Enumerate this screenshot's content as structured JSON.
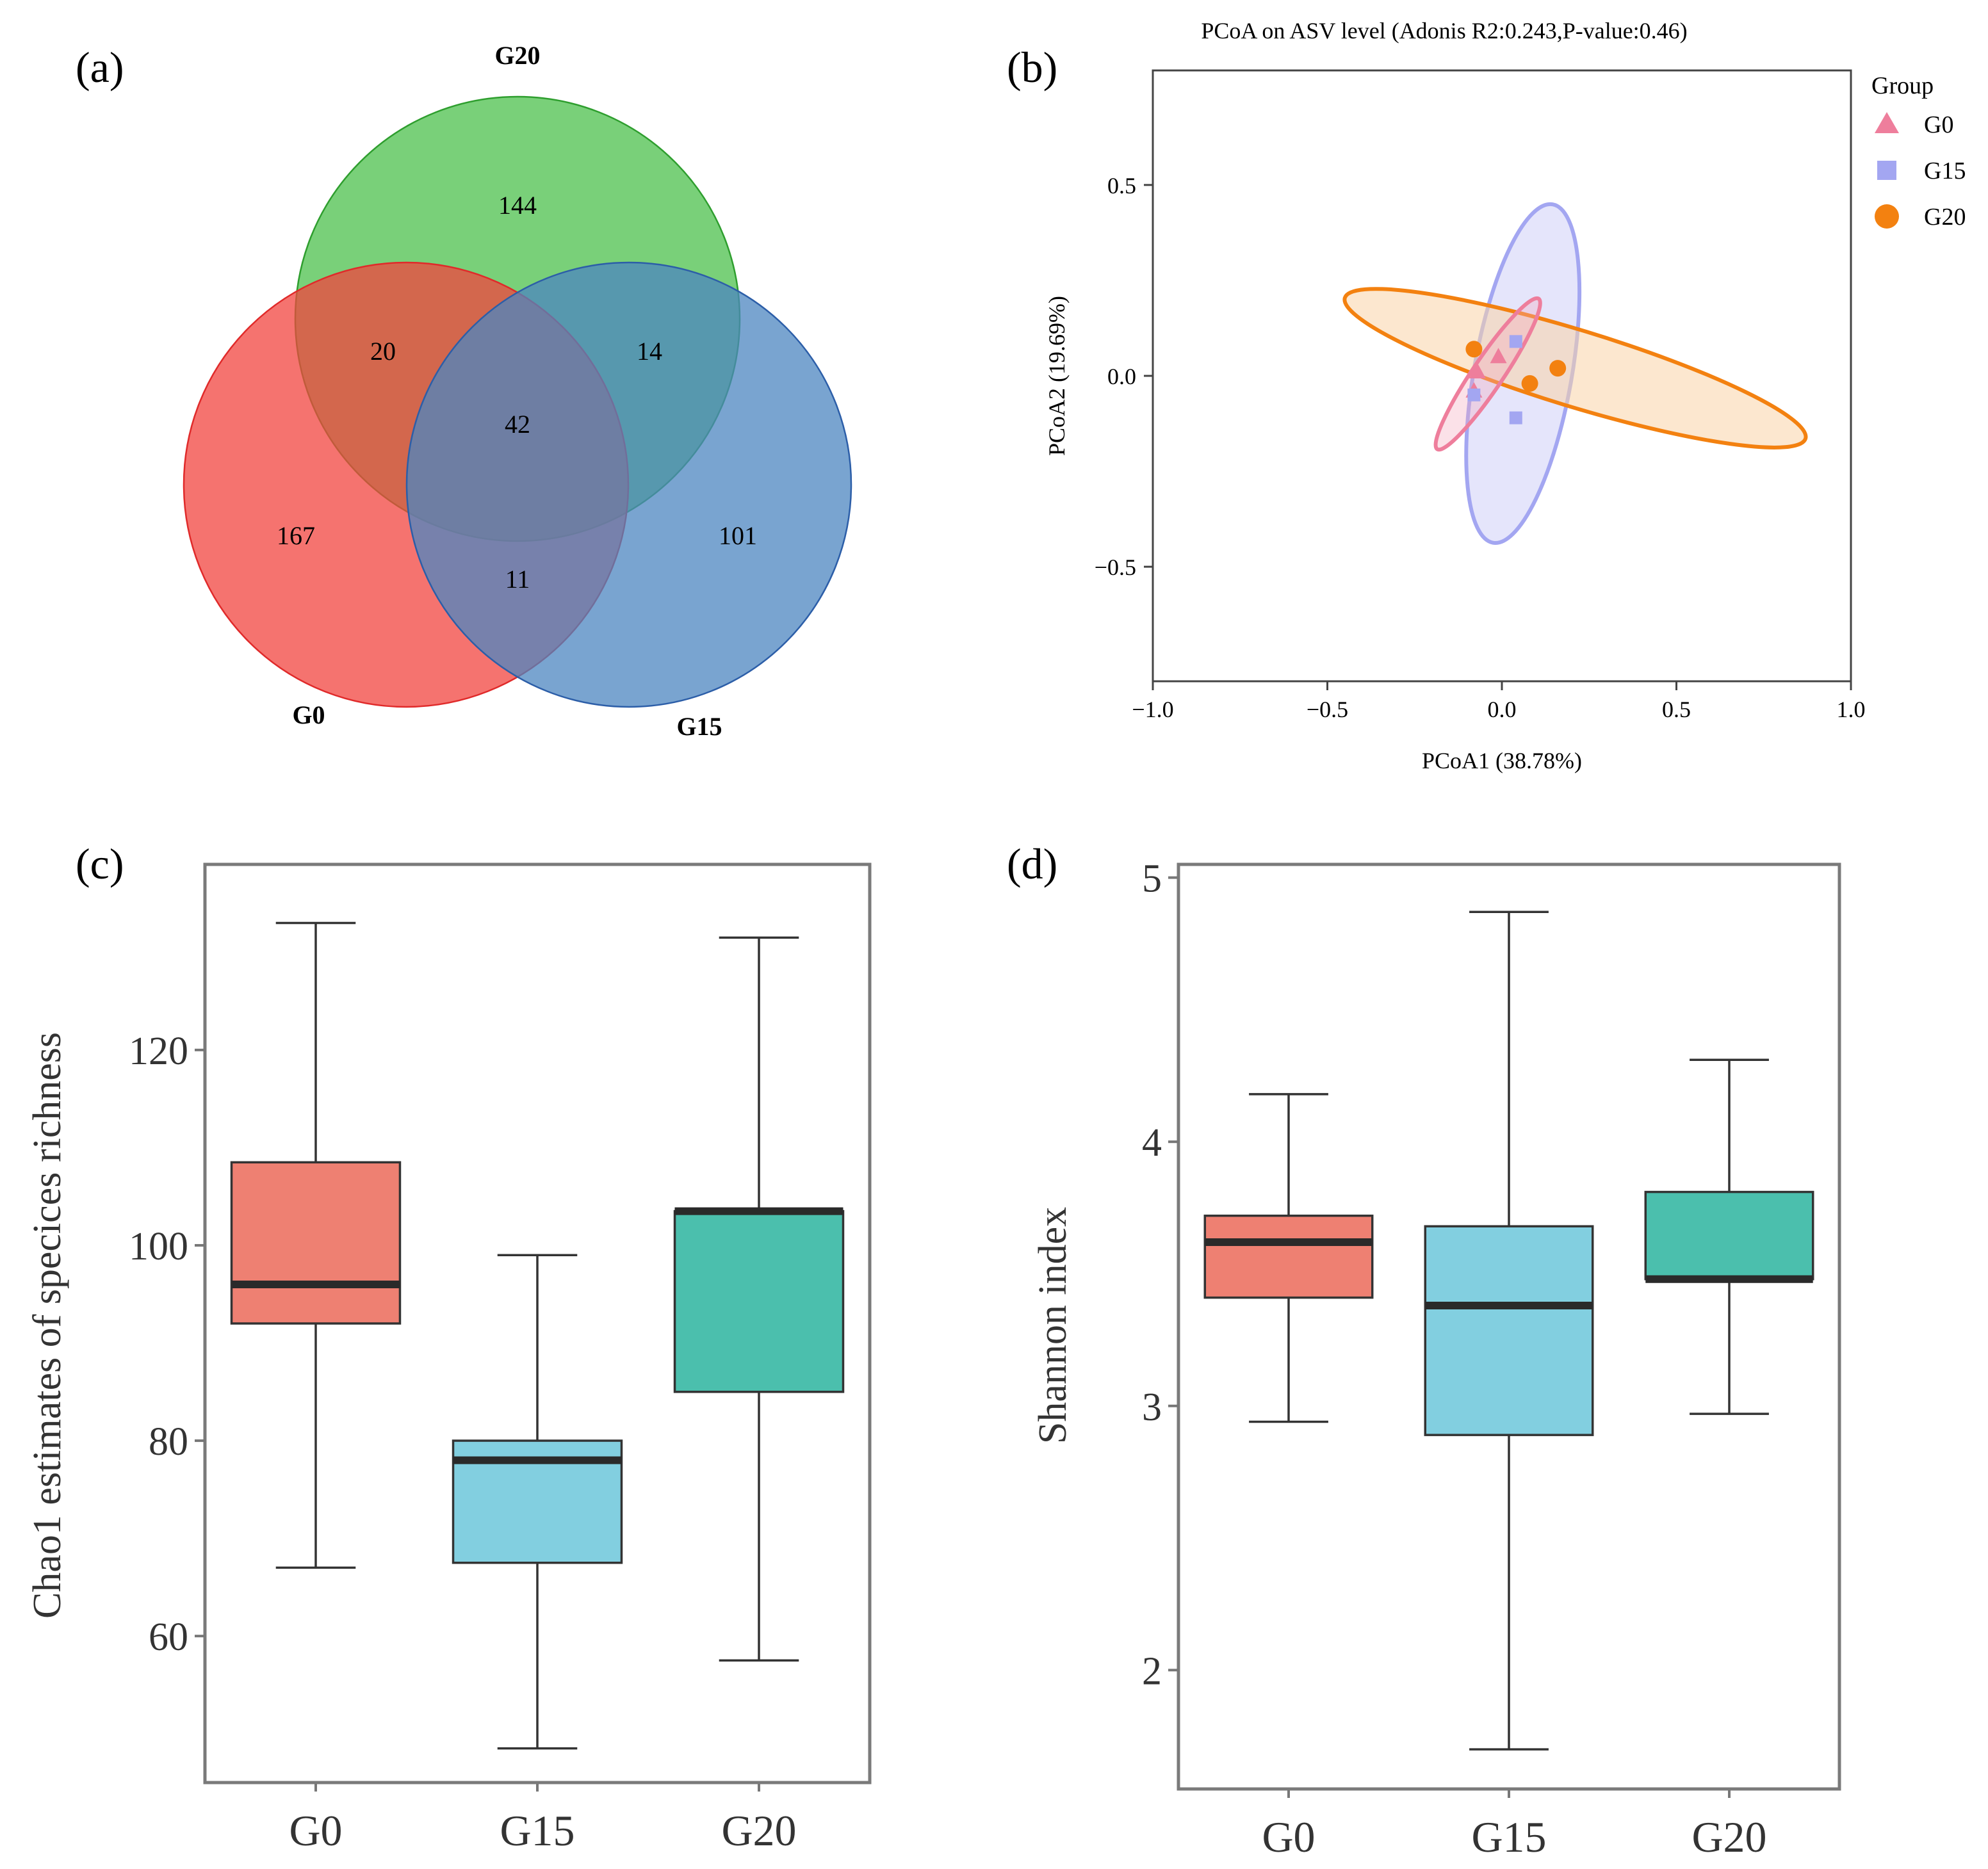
{
  "chart_data": [
    {
      "panel": "(a)",
      "type": "venn",
      "sets": [
        {
          "name": "G20",
          "color": "#4CC04C"
        },
        {
          "name": "G0",
          "color": "#F2443F"
        },
        {
          "name": "G15",
          "color": "#4C85C0"
        }
      ],
      "regions": [
        {
          "sets": [
            "G20"
          ],
          "value": "144"
        },
        {
          "sets": [
            "G0"
          ],
          "value": "167"
        },
        {
          "sets": [
            "G15"
          ],
          "value": "101"
        },
        {
          "sets": [
            "G0",
            "G20"
          ],
          "value": "20"
        },
        {
          "sets": [
            "G20",
            "G15"
          ],
          "value": "14"
        },
        {
          "sets": [
            "G0",
            "G15"
          ],
          "value": "11"
        },
        {
          "sets": [
            "G0",
            "G20",
            "G15"
          ],
          "value": "42"
        }
      ]
    },
    {
      "panel": "(b)",
      "type": "scatter",
      "title": "PCoA on ASV level (Adonis R2:0.243,P-value:0.46)",
      "xlabel": "PCoA1 (38.78%)",
      "ylabel": "PCoA2 (19.69%)",
      "xlim": [
        -1.0,
        1.0
      ],
      "ylim": [
        -0.8,
        0.8
      ],
      "xticks": [
        -1.0,
        -0.5,
        0.0,
        0.5,
        1.0
      ],
      "xtick_labels": [
        "−1.0",
        "−0.5",
        "0.0",
        "0.5",
        "1.0"
      ],
      "yticks": [
        -0.5,
        0.0,
        0.5
      ],
      "ytick_labels": [
        "−0.5",
        "0.0",
        "0.5"
      ],
      "legend_title": "Group",
      "legend_position": "top-right outside",
      "series": [
        {
          "name": "G0",
          "marker": "triangle",
          "color": "#EE7E9C",
          "points": [
            [
              -0.07,
              0.01
            ],
            [
              -0.01,
              0.05
            ],
            [
              -0.08,
              -0.04
            ]
          ],
          "ellipse": {
            "cx": -0.04,
            "cy": 0.005,
            "rx": 0.26,
            "ry": 0.04,
            "angle_deg": 56
          }
        },
        {
          "name": "G15",
          "marker": "square",
          "color": "#A3A6F1",
          "points": [
            [
              0.04,
              0.09
            ],
            [
              -0.08,
              -0.05
            ],
            [
              0.04,
              -0.11
            ]
          ],
          "ellipse": {
            "cx": 0.06,
            "cy": 0.006,
            "rx": 0.14,
            "ry": 0.45,
            "angle_deg": -10
          }
        },
        {
          "name": "G20",
          "marker": "circle",
          "color": "#F38110",
          "points": [
            [
              -0.08,
              0.07
            ],
            [
              0.08,
              -0.02
            ],
            [
              0.16,
              0.02
            ]
          ],
          "ellipse": {
            "cx": 0.21,
            "cy": 0.02,
            "rx": 0.69,
            "ry": 0.1,
            "angle_deg": -17
          }
        }
      ]
    },
    {
      "panel": "(c)",
      "type": "box",
      "ylabel": "Chao1 estimates of specices richness",
      "categories": [
        "G0",
        "G15",
        "G20"
      ],
      "ylim": [
        45,
        139
      ],
      "yticks": [
        60,
        80,
        100,
        120
      ],
      "ytick_labels": [
        "60",
        "80",
        "100",
        "120"
      ],
      "boxes": [
        {
          "name": "G0",
          "color": "#EE8072",
          "min": 67.0,
          "q1": 92.0,
          "median": 96.0,
          "q3": 108.5,
          "max": 133.0
        },
        {
          "name": "G15",
          "color": "#82CFE0",
          "min": 48.5,
          "q1": 67.5,
          "median": 78.0,
          "q3": 80.0,
          "max": 99.0
        },
        {
          "name": "G20",
          "color": "#4BBFAD",
          "min": 57.5,
          "q1": 85.0,
          "median": 103.5,
          "q3": 103.5,
          "max": 131.5
        }
      ]
    },
    {
      "panel": "(d)",
      "type": "box",
      "ylabel": "Shannon index",
      "categories": [
        "G0",
        "G15",
        "G20"
      ],
      "ylim": [
        1.55,
        5.05
      ],
      "yticks": [
        2,
        3,
        4,
        5
      ],
      "ytick_labels": [
        "2",
        "3",
        "4",
        "5"
      ],
      "boxes": [
        {
          "name": "G0",
          "color": "#EE8072",
          "min": 2.94,
          "q1": 3.41,
          "median": 3.62,
          "q3": 3.72,
          "max": 4.18
        },
        {
          "name": "G15",
          "color": "#82CFE0",
          "min": 1.7,
          "q1": 2.89,
          "median": 3.38,
          "q3": 3.68,
          "max": 4.87
        },
        {
          "name": "G20",
          "color": "#4BBFAD",
          "min": 2.97,
          "q1": 3.48,
          "median": 3.48,
          "q3": 3.81,
          "max": 4.31
        }
      ]
    }
  ]
}
